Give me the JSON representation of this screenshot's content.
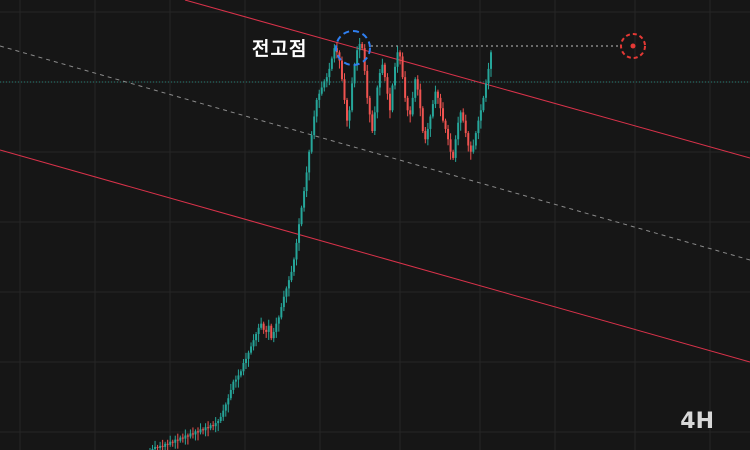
{
  "chart_data": {
    "type": "candlestick",
    "timeframe_label": "4H",
    "annotation_label": "전고점",
    "grid": true,
    "colors": {
      "background": "#161616",
      "grid": "#262626",
      "up": "#26a69a",
      "down": "#ef5350",
      "channel": "#d9324a",
      "midline": "#8a8a8a",
      "peak_marker": "#2f7ff0",
      "target_marker": "#e53935",
      "level_line": "#26a69a"
    },
    "series": [
      {
        "name": "price",
        "values": [
          12,
          13,
          15,
          14,
          16,
          15,
          18,
          17,
          20,
          19,
          22,
          21,
          24,
          23,
          26,
          25,
          28,
          27,
          30,
          29,
          32,
          31,
          34,
          33,
          36,
          35,
          38,
          40,
          44,
          50,
          56,
          62,
          70,
          78,
          80,
          84,
          88,
          96,
          100,
          106,
          112,
          118,
          124,
          130,
          134,
          128,
          126,
          132,
          120,
          126,
          134,
          140,
          150,
          160,
          168,
          176,
          184,
          196,
          212,
          230,
          246,
          262,
          280,
          300,
          316,
          334,
          350,
          356,
          362,
          368,
          372,
          380,
          390,
          400,
          396,
          388,
          370,
          350,
          330,
          340,
          366,
          384,
          398,
          404,
          400,
          378,
          352,
          336,
          320,
          338,
          362,
          376,
          384,
          372,
          356,
          340,
          364,
          382,
          396,
          392,
          372,
          352,
          340,
          336,
          352,
          370,
          360,
          342,
          320,
          312,
          322,
          334,
          346,
          358,
          352,
          342,
          330,
          322,
          312,
          300,
          294,
          312,
          328,
          338,
          330,
          318,
          306,
          300,
          306,
          318,
          330,
          340,
          352,
          366,
          380,
          396
        ]
      }
    ]
  }
}
